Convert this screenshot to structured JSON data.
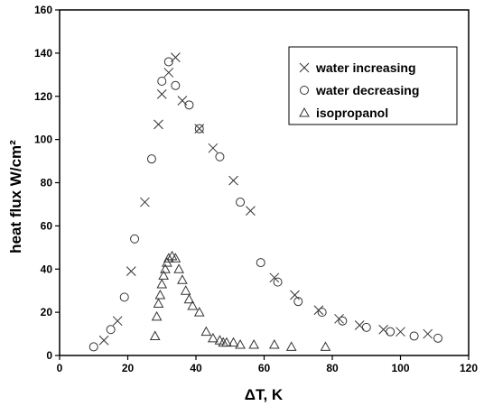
{
  "chart_data": {
    "type": "scatter",
    "xlabel": "ΔT, K",
    "ylabel": "heat flux W/cm²",
    "xlim": [
      0,
      120
    ],
    "ylim": [
      0,
      160
    ],
    "x_ticks": [
      0,
      20,
      40,
      60,
      80,
      100,
      120
    ],
    "y_ticks": [
      0,
      20,
      40,
      60,
      80,
      100,
      120,
      140,
      160
    ],
    "grid": false,
    "legend_position": "top-right",
    "series": [
      {
        "name": "water increasing",
        "marker": "x",
        "points": [
          [
            13,
            7
          ],
          [
            17,
            16
          ],
          [
            21,
            39
          ],
          [
            25,
            71
          ],
          [
            29,
            107
          ],
          [
            30,
            121
          ],
          [
            32,
            131
          ],
          [
            34,
            138
          ],
          [
            36,
            118
          ],
          [
            41,
            105
          ],
          [
            45,
            96
          ],
          [
            51,
            81
          ],
          [
            56,
            67
          ],
          [
            63,
            36
          ],
          [
            69,
            28
          ],
          [
            76,
            21
          ],
          [
            82,
            17
          ],
          [
            88,
            14
          ],
          [
            95,
            12
          ],
          [
            100,
            11
          ],
          [
            108,
            10
          ]
        ]
      },
      {
        "name": "water decreasing",
        "marker": "circle",
        "points": [
          [
            10,
            4
          ],
          [
            15,
            12
          ],
          [
            19,
            27
          ],
          [
            22,
            54
          ],
          [
            27,
            91
          ],
          [
            30,
            127
          ],
          [
            32,
            136
          ],
          [
            34,
            125
          ],
          [
            38,
            116
          ],
          [
            41,
            105
          ],
          [
            47,
            92
          ],
          [
            53,
            71
          ],
          [
            59,
            43
          ],
          [
            64,
            34
          ],
          [
            70,
            25
          ],
          [
            77,
            20
          ],
          [
            83,
            16
          ],
          [
            90,
            13
          ],
          [
            97,
            11
          ],
          [
            104,
            9
          ],
          [
            111,
            8
          ]
        ]
      },
      {
        "name": "isopropanol",
        "marker": "triangle",
        "points": [
          [
            28,
            9
          ],
          [
            28.5,
            18
          ],
          [
            29,
            24
          ],
          [
            29.5,
            28
          ],
          [
            30,
            33
          ],
          [
            30.5,
            37
          ],
          [
            31,
            40
          ],
          [
            31.5,
            43
          ],
          [
            32,
            45
          ],
          [
            33,
            46
          ],
          [
            34,
            45
          ],
          [
            35,
            40
          ],
          [
            36,
            35
          ],
          [
            37,
            30
          ],
          [
            38,
            26
          ],
          [
            39,
            23
          ],
          [
            41,
            20
          ],
          [
            43,
            11
          ],
          [
            45,
            8
          ],
          [
            47,
            7
          ],
          [
            48,
            6
          ],
          [
            49,
            6
          ],
          [
            51,
            6
          ],
          [
            53,
            5
          ],
          [
            57,
            5
          ],
          [
            63,
            5
          ],
          [
            68,
            4
          ],
          [
            78,
            4
          ]
        ]
      }
    ]
  }
}
